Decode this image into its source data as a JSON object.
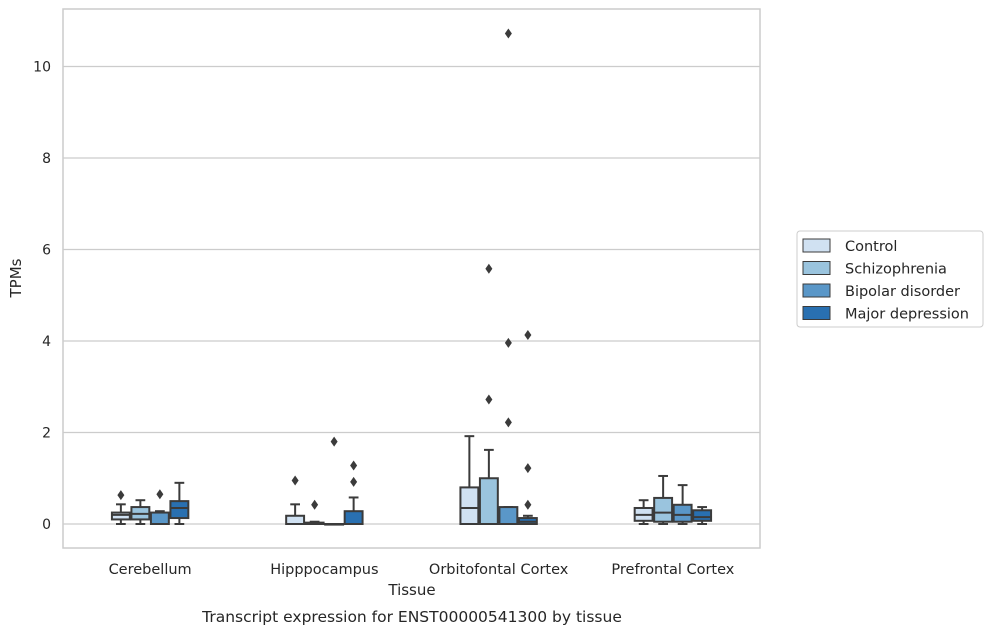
{
  "chart_data": {
    "type": "box",
    "title": "Transcript expression for ENST00000541300 by tissue",
    "xlabel": "Tissue",
    "ylabel": "TPMs",
    "ylim": [
      -0.5,
      11.3
    ],
    "yticks": [
      0,
      2,
      4,
      6,
      8,
      10
    ],
    "categories": [
      "Cerebellum",
      "Hipppocampus",
      "Orbitofontal Cortex",
      "Prefrontal Cortex"
    ],
    "grid": "horizontal",
    "legend_position": "right",
    "series": [
      {
        "name": "Control",
        "color": "#d0e1f2",
        "boxes": [
          {
            "whislo": 0.0,
            "q1": 0.1,
            "med": 0.2,
            "q3": 0.25,
            "whishi": 0.43,
            "fliers": [
              0.63
            ]
          },
          {
            "whislo": 0.0,
            "q1": 0.0,
            "med": 0.0,
            "q3": 0.18,
            "whishi": 0.43,
            "fliers": [
              0.95
            ]
          },
          {
            "whislo": 0.0,
            "q1": 0.0,
            "med": 0.35,
            "q3": 0.8,
            "whishi": 1.92,
            "fliers": []
          },
          {
            "whislo": 0.0,
            "q1": 0.07,
            "med": 0.2,
            "q3": 0.35,
            "whishi": 0.52,
            "fliers": []
          }
        ]
      },
      {
        "name": "Schizophrenia",
        "color": "#9ac4de",
        "boxes": [
          {
            "whislo": 0.0,
            "q1": 0.1,
            "med": 0.22,
            "q3": 0.37,
            "whishi": 0.52,
            "fliers": []
          },
          {
            "whislo": 0.0,
            "q1": 0.0,
            "med": 0.0,
            "q3": 0.03,
            "whishi": 0.05,
            "fliers": [
              0.42
            ]
          },
          {
            "whislo": 0.0,
            "q1": 0.0,
            "med": 0.0,
            "q3": 1.0,
            "whishi": 1.62,
            "fliers": [
              2.72,
              5.58
            ]
          },
          {
            "whislo": 0.0,
            "q1": 0.05,
            "med": 0.25,
            "q3": 0.57,
            "whishi": 1.05,
            "fliers": []
          }
        ]
      },
      {
        "name": "Bipolar disorder",
        "color": "#5a97c8",
        "boxes": [
          {
            "whislo": 0.0,
            "q1": 0.0,
            "med": 0.0,
            "q3": 0.25,
            "whishi": 0.28,
            "fliers": [
              0.65
            ]
          },
          {
            "whislo": 0.0,
            "q1": 0.0,
            "med": 0.0,
            "q3": 0.0,
            "whishi": 0.0,
            "fliers": [
              1.8
            ]
          },
          {
            "whislo": 0.0,
            "q1": 0.0,
            "med": 0.0,
            "q3": 0.37,
            "whishi": 0.37,
            "fliers": [
              2.22,
              3.96,
              10.72
            ]
          },
          {
            "whislo": 0.0,
            "q1": 0.05,
            "med": 0.2,
            "q3": 0.42,
            "whishi": 0.85,
            "fliers": []
          }
        ]
      },
      {
        "name": "Major depression",
        "color": "#2970b1",
        "boxes": [
          {
            "whislo": 0.0,
            "q1": 0.13,
            "med": 0.35,
            "q3": 0.5,
            "whishi": 0.9,
            "fliers": []
          },
          {
            "whislo": 0.0,
            "q1": 0.0,
            "med": 0.0,
            "q3": 0.28,
            "whishi": 0.58,
            "fliers": [
              0.92,
              1.28
            ]
          },
          {
            "whislo": 0.0,
            "q1": 0.0,
            "med": 0.05,
            "q3": 0.13,
            "whishi": 0.18,
            "fliers": [
              0.42,
              1.22,
              4.13
            ]
          },
          {
            "whislo": 0.0,
            "q1": 0.07,
            "med": 0.15,
            "q3": 0.3,
            "whishi": 0.37,
            "fliers": []
          }
        ]
      }
    ]
  }
}
